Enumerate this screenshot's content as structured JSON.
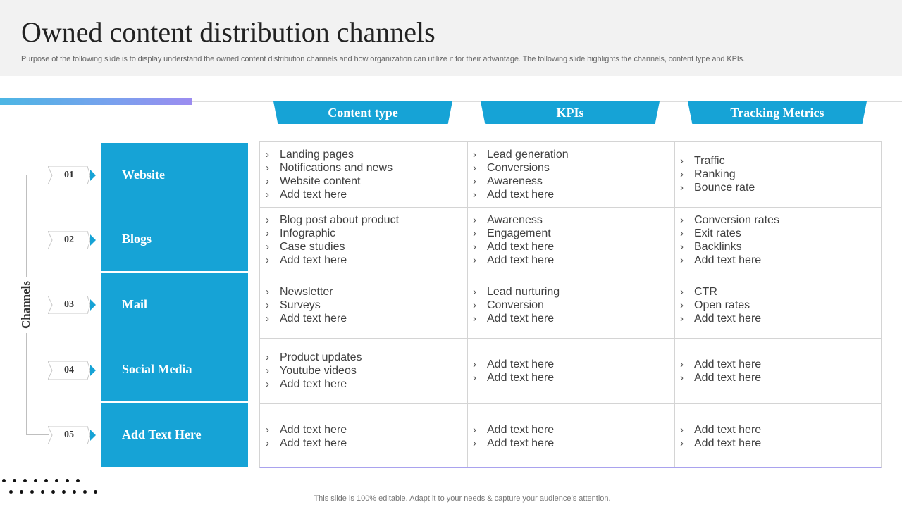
{
  "slide": {
    "title": "Owned content distribution channels",
    "subtitle": "Purpose of the following slide is to display understand the owned content distribution channels and how organization can utilize it for their advantage. The following slide highlights the channels, content type and KPIs.",
    "side_label": "Channels",
    "footer": "This slide is 100% editable. Adapt it to your needs & capture your audience’s attention."
  },
  "columns": [
    "Content type",
    "KPIs",
    "Tracking Metrics"
  ],
  "rows": [
    {
      "number": "01",
      "channel": "Website",
      "content": [
        "Landing pages",
        "Notifications and news",
        "Website content",
        "Add text here"
      ],
      "kpis": [
        "Lead generation",
        "Conversions",
        "Awareness",
        "Add text here"
      ],
      "metrics": [
        "Traffic",
        "Ranking",
        "Bounce rate"
      ]
    },
    {
      "number": "02",
      "channel": "Blogs",
      "content": [
        "Blog post about product",
        "Infographic",
        "Case studies",
        "Add text here"
      ],
      "kpis": [
        "Awareness",
        "Engagement",
        "Add text here",
        "Add text here"
      ],
      "metrics": [
        "Conversion rates",
        "Exit rates",
        "Backlinks",
        "Add text here"
      ]
    },
    {
      "number": "03",
      "channel": "Mail",
      "content": [
        "Newsletter",
        "Surveys",
        "Add text here"
      ],
      "kpis": [
        "Lead nurturing",
        "Conversion",
        "Add text here"
      ],
      "metrics": [
        "CTR",
        "Open rates",
        "Add text here"
      ]
    },
    {
      "number": "04",
      "channel": "Social Media",
      "content": [
        "Product updates",
        "Youtube videos",
        "Add text here"
      ],
      "kpis": [
        "Add text here",
        "Add text here"
      ],
      "metrics": [
        "Add text here",
        "Add text here"
      ]
    },
    {
      "number": "05",
      "channel": "Add Text Here",
      "content": [
        "Add text here",
        "Add text here"
      ],
      "kpis": [
        "Add text here",
        "Add text here"
      ],
      "metrics": [
        "Add text here",
        "Add text here"
      ]
    }
  ],
  "colors": {
    "accent": "#16a3d6",
    "grid_bottom": "#a9a2ee"
  }
}
